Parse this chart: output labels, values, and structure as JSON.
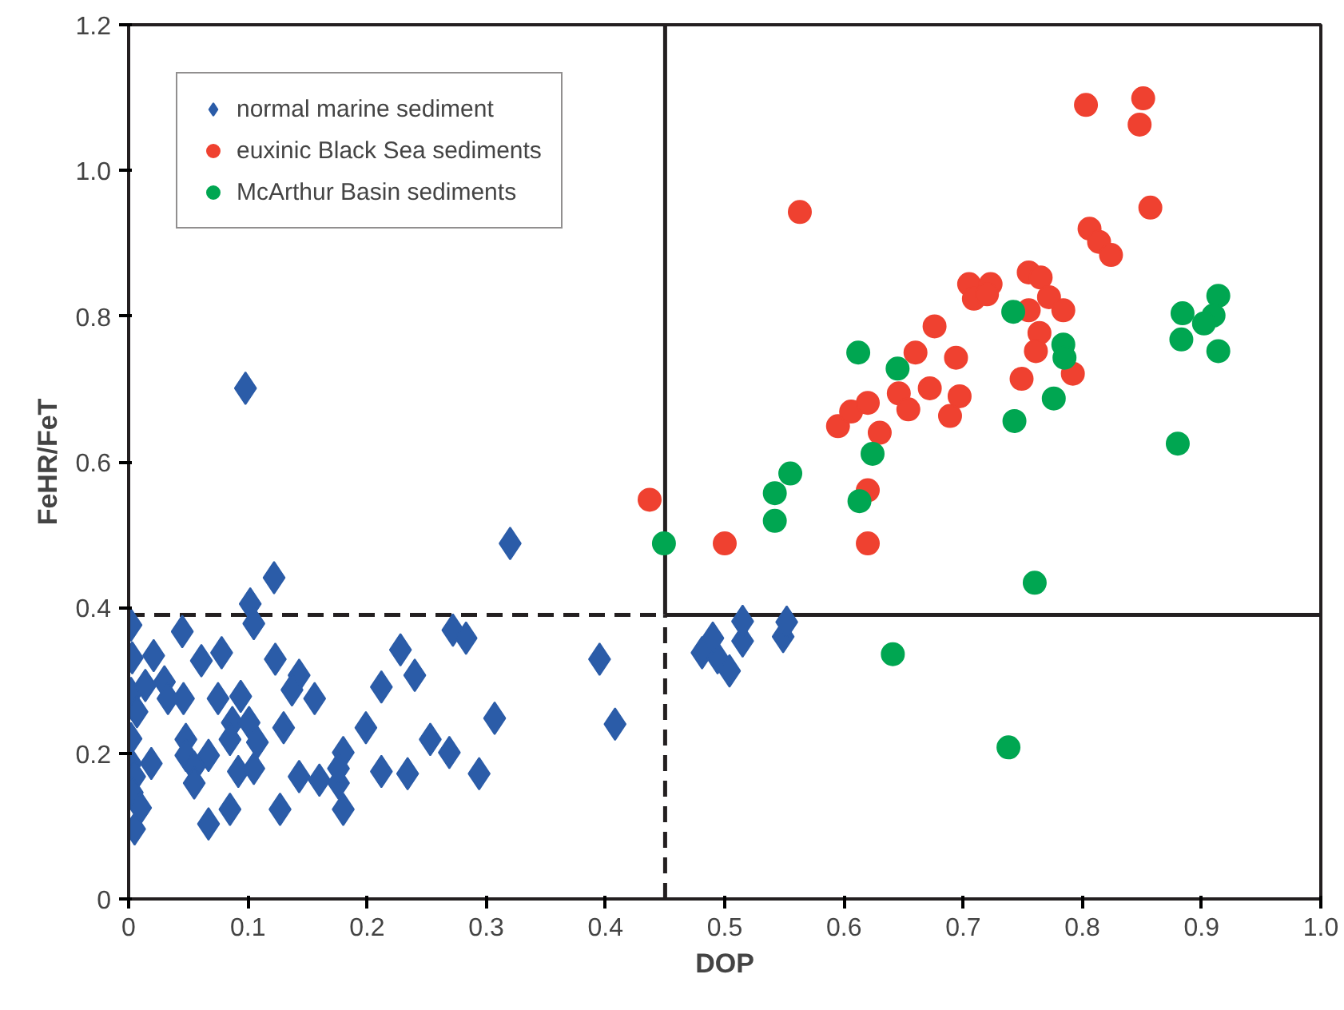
{
  "chart_data": {
    "type": "scatter",
    "xlabel": "DOP",
    "ylabel": "FeHR/FeT",
    "xlim": [
      0,
      1
    ],
    "ylim": [
      0,
      1.2
    ],
    "xticks": [
      0,
      0.1,
      0.2,
      0.3,
      0.4,
      0.5,
      0.6,
      0.7,
      0.8,
      0.9,
      {
        "value": 1,
        "label": "1.0"
      }
    ],
    "yticks": [
      0,
      0.2,
      0.4,
      0.6,
      0.8,
      {
        "value": 1,
        "label": "1.0"
      },
      1.2
    ],
    "grid": false,
    "legend": "top left",
    "ref_lines": [
      {
        "axis": "y",
        "value": 0.39,
        "line_style": "dashed",
        "color": "#231f20"
      },
      {
        "axis": "x",
        "value": 0.45,
        "line_style": "dashed",
        "color": "#231f20"
      },
      {
        "axis": "y",
        "value": 0.39,
        "line_style": "solid",
        "color": "#231f20"
      },
      {
        "axis": "x",
        "value": 0.45,
        "line_style": "solid",
        "color": "#231f20"
      }
    ],
    "series": [
      {
        "name": "normal marine sediment",
        "color": "#2b5ca8",
        "marker": "diamond",
        "x": [
          0.098,
          0.32,
          0.122,
          0.102,
          0.105,
          0.002,
          0.045,
          0.003,
          0.021,
          0.061,
          0.078,
          0.123,
          0.228,
          0.24,
          0.212,
          0.143,
          0.137,
          0.156,
          0.272,
          0.283,
          0.395,
          0.408,
          0.307,
          0.002,
          0.014,
          0.03,
          0.033,
          0.046,
          0.075,
          0.094,
          0.007,
          0.002,
          0.087,
          0.101,
          0.085,
          0.108,
          0.13,
          0.048,
          0.067,
          0.048,
          0.055,
          0.019,
          0.002,
          0.005,
          0.003,
          0.01,
          0.005,
          0.055,
          0.092,
          0.105,
          0.067,
          0.085,
          0.127,
          0.143,
          0.16,
          0.176,
          0.18,
          0.176,
          0.18,
          0.212,
          0.234,
          0.253,
          0.269,
          0.294,
          0.199,
          0.481,
          0.494,
          0.504,
          0.515,
          0.515,
          0.549,
          0.552,
          0.49
        ],
        "values": [
          0.701,
          0.488,
          0.441,
          0.405,
          0.378,
          0.376,
          0.367,
          0.331,
          0.334,
          0.327,
          0.338,
          0.329,
          0.342,
          0.307,
          0.291,
          0.307,
          0.287,
          0.275,
          0.369,
          0.358,
          0.329,
          0.24,
          0.248,
          0.282,
          0.293,
          0.298,
          0.275,
          0.275,
          0.275,
          0.278,
          0.257,
          0.22,
          0.242,
          0.242,
          0.219,
          0.215,
          0.235,
          0.219,
          0.197,
          0.197,
          0.181,
          0.186,
          0.186,
          0.168,
          0.146,
          0.125,
          0.096,
          0.159,
          0.175,
          0.179,
          0.103,
          0.123,
          0.123,
          0.168,
          0.163,
          0.159,
          0.201,
          0.179,
          0.123,
          0.175,
          0.172,
          0.219,
          0.201,
          0.172,
          0.235,
          0.338,
          0.331,
          0.313,
          0.354,
          0.381,
          0.36,
          0.38,
          0.358
        ]
      },
      {
        "name": "euxinic Black Sea sediments",
        "color": "#ef4130",
        "marker": "circle",
        "x": [
          0.437,
          0.563,
          0.5,
          0.62,
          0.62,
          0.595,
          0.606,
          0.62,
          0.63,
          0.646,
          0.654,
          0.66,
          0.672,
          0.676,
          0.689,
          0.694,
          0.697,
          0.705,
          0.709,
          0.723,
          0.72,
          0.749,
          0.755,
          0.765,
          0.755,
          0.764,
          0.761,
          0.772,
          0.784,
          0.792,
          0.803,
          0.851,
          0.848,
          0.857,
          0.806,
          0.814,
          0.824
        ],
        "values": [
          0.548,
          0.943,
          0.488,
          0.488,
          0.561,
          0.649,
          0.669,
          0.681,
          0.64,
          0.694,
          0.672,
          0.75,
          0.701,
          0.786,
          0.663,
          0.743,
          0.69,
          0.844,
          0.824,
          0.844,
          0.83,
          0.714,
          0.86,
          0.853,
          0.808,
          0.777,
          0.752,
          0.826,
          0.808,
          0.721,
          1.09,
          1.099,
          1.063,
          0.949,
          0.92,
          0.902,
          0.884
        ]
      },
      {
        "name": "McArthur Basin sediments",
        "color": "#00a651",
        "marker": "circle",
        "x": [
          0.449,
          0.555,
          0.542,
          0.542,
          0.612,
          0.645,
          0.624,
          0.613,
          0.742,
          0.743,
          0.776,
          0.784,
          0.785,
          0.76,
          0.88,
          0.884,
          0.883,
          0.914,
          0.91,
          0.902,
          0.914,
          0.641,
          0.738
        ],
        "values": [
          0.488,
          0.584,
          0.557,
          0.519,
          0.75,
          0.728,
          0.611,
          0.546,
          0.806,
          0.656,
          0.687,
          0.761,
          0.743,
          0.434,
          0.625,
          0.804,
          0.768,
          0.828,
          0.801,
          0.79,
          0.752,
          0.336,
          0.208
        ]
      }
    ]
  }
}
